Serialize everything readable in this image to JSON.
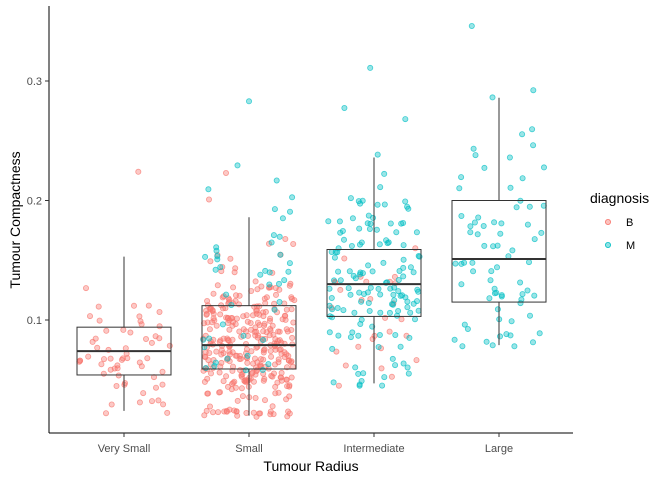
{
  "chart_data": {
    "type": "boxplot-jitter",
    "xlabel": "Tumour Radius",
    "ylabel": "Tumour Compactness",
    "categories": [
      "Very Small",
      "Small",
      "Intermediate",
      "Large"
    ],
    "y_ticks": [
      0.1,
      0.2,
      0.3
    ],
    "ylim": [
      0.01,
      0.355
    ],
    "grid": false,
    "legend": {
      "title": "diagnosis",
      "placement": "right",
      "entries": [
        {
          "label": "B",
          "color": "#F8766D"
        },
        {
          "label": "M",
          "color": "#00BFC4"
        }
      ]
    },
    "boxes": [
      {
        "category": "Very Small",
        "q1": 0.054,
        "median": 0.074,
        "q3": 0.094,
        "whisker_low": 0.024,
        "whisker_high": 0.153
      },
      {
        "category": "Small",
        "q1": 0.059,
        "median": 0.079,
        "q3": 0.112,
        "whisker_low": 0.02,
        "whisker_high": 0.186
      },
      {
        "category": "Intermediate",
        "q1": 0.103,
        "median": 0.13,
        "q3": 0.159,
        "whisker_low": 0.047,
        "whisker_high": 0.236
      },
      {
        "category": "Large",
        "q1": 0.115,
        "median": 0.151,
        "q3": 0.2,
        "whisker_low": 0.079,
        "whisker_high": 0.286
      }
    ],
    "point_groups": [
      {
        "category": "Very Small",
        "diagnosis": "B",
        "n": 60,
        "min": 0.022,
        "max": 0.224,
        "center": 0.074,
        "spread": 0.026
      },
      {
        "category": "Small",
        "diagnosis": "B",
        "n": 330,
        "min": 0.019,
        "max": 0.223,
        "center": 0.079,
        "spread": 0.032
      },
      {
        "category": "Small",
        "diagnosis": "M",
        "n": 45,
        "min": 0.058,
        "max": 0.283,
        "center": 0.13,
        "spread": 0.045
      },
      {
        "category": "Intermediate",
        "diagnosis": "B",
        "n": 28,
        "min": 0.045,
        "max": 0.16,
        "center": 0.1,
        "spread": 0.03
      },
      {
        "category": "Intermediate",
        "diagnosis": "M",
        "n": 140,
        "min": 0.045,
        "max": 0.311,
        "center": 0.13,
        "spread": 0.045
      },
      {
        "category": "Large",
        "diagnosis": "M",
        "n": 75,
        "min": 0.078,
        "max": 0.346,
        "center": 0.155,
        "spread": 0.055
      }
    ]
  }
}
